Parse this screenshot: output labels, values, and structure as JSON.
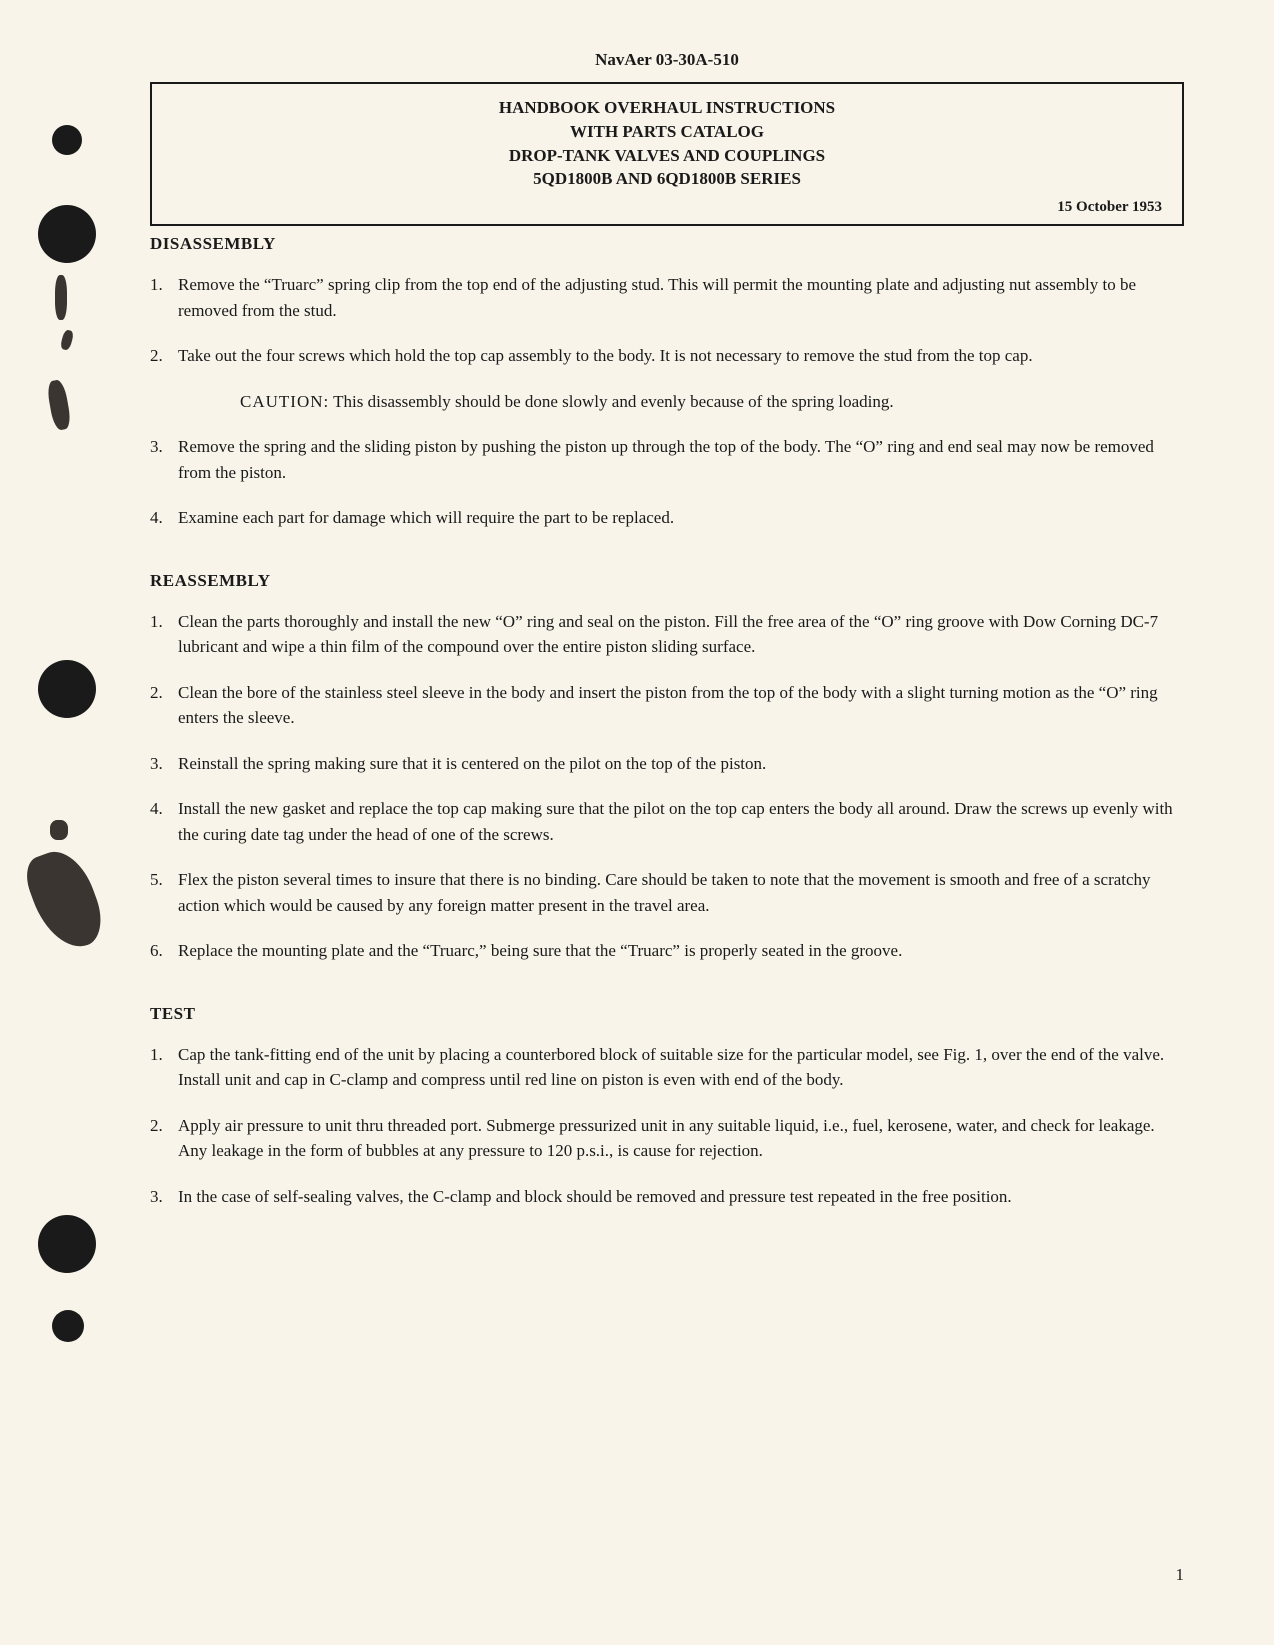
{
  "document": {
    "doc_id": "NavAer 03-30A-510",
    "title_line1": "HANDBOOK OVERHAUL INSTRUCTIONS",
    "title_line2": "WITH PARTS CATALOG",
    "title_line3": "DROP-TANK VALVES AND COUPLINGS",
    "title_line4": "5QD1800B AND 6QD1800B SERIES",
    "date": "15 October 1953",
    "page_number": "1"
  },
  "sections": {
    "disassembly": {
      "heading": "DISASSEMBLY",
      "items": [
        {
          "number": "1.",
          "text": "Remove the “Truarc” spring clip from the top end of the adjusting stud. This will permit the mounting plate and adjusting nut assembly to be removed from the stud."
        },
        {
          "number": "2.",
          "text": "Take out the four screws which hold the top cap assembly to the body. It is not necessary to remove the stud from the top cap."
        },
        {
          "number": "3.",
          "text": "Remove the spring and the sliding piston by pushing the piston up through the top of the body. The “O” ring and end seal may now be removed from the piston."
        },
        {
          "number": "4.",
          "text": "Examine each part for damage which will require the part to be replaced."
        }
      ],
      "caution": {
        "label": "CAUTION:",
        "text": "This disassembly should be done slowly and evenly because of the spring loading."
      }
    },
    "reassembly": {
      "heading": "REASSEMBLY",
      "items": [
        {
          "number": "1.",
          "text": "Clean the parts thoroughly and install the new “O” ring and seal on the piston. Fill the free area of the “O” ring groove with Dow Corning DC-7 lubricant and wipe a thin film of the compound over the entire piston sliding surface."
        },
        {
          "number": "2.",
          "text": "Clean the bore of the stainless steel sleeve in the body and insert the piston from the top of the body with a slight turning motion as the “O” ring enters the sleeve."
        },
        {
          "number": "3.",
          "text": "Reinstall the spring making sure that it is centered on the pilot on the top of the piston."
        },
        {
          "number": "4.",
          "text": "Install the new gasket and replace the top cap making sure that the pilot on the top cap enters the body all around. Draw the screws up evenly with the curing date tag under the head of one of the screws."
        },
        {
          "number": "5.",
          "text": "Flex the piston several times to insure that there is no binding. Care should be taken to note that the movement is smooth and free of a scratchy action which would be caused by any foreign matter present in the travel area."
        },
        {
          "number": "6.",
          "text": "Replace the mounting plate and the “Truarc,” being sure that the “Truarc” is properly seated in the groove."
        }
      ]
    },
    "test": {
      "heading": "TEST",
      "items": [
        {
          "number": "1.",
          "text": "Cap the tank-fitting end of the unit by placing a counterbored block of suitable size for the particular model, see Fig. 1, over the end of the valve. Install unit and cap in C-clamp and compress until red line on piston is even with end of the body."
        },
        {
          "number": "2.",
          "text": "Apply air pressure to unit thru threaded port. Submerge pressurized unit in any suitable liquid, i.e., fuel, kerosene, water, and check for leakage. Any leakage in the form of bubbles at any pressure to 120 p.s.i., is cause for rejection."
        },
        {
          "number": "3.",
          "text": "In the case of self-sealing valves, the C-clamp and block should be removed and pressure test repeated in the free position."
        }
      ]
    }
  },
  "styling": {
    "background_color": "#f8f4ea",
    "text_color": "#1a1a1a",
    "hole_color": "#1a1a1a",
    "body_fontsize": 17,
    "heading_fontsize": 17,
    "title_fontsize": 17
  }
}
